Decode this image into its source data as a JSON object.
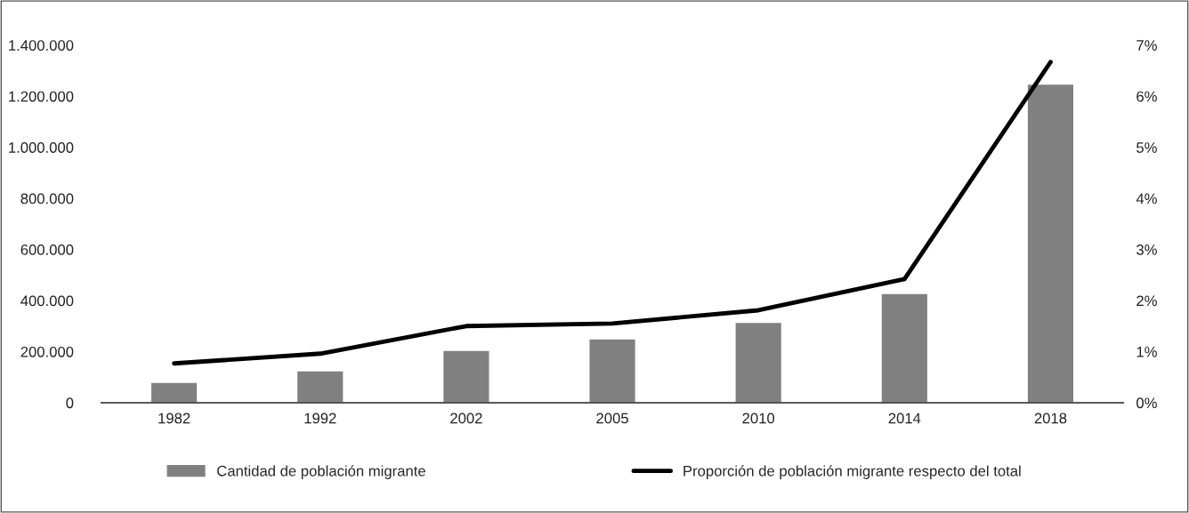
{
  "chart_data": {
    "type": "bar",
    "categories": [
      "1982",
      "1992",
      "2002",
      "2005",
      "2010",
      "2014",
      "2018"
    ],
    "series": [
      {
        "name": "Cantidad de población migrante",
        "color": "#808080",
        "values": [
          80000,
          125000,
          205000,
          250000,
          315000,
          428000,
          1248000
        ]
      },
      {
        "name": "Proporción de población migrante respecto del total",
        "type": "line",
        "axis": "y2",
        "color": "#000000",
        "values": [
          0.77,
          0.96,
          1.5,
          1.55,
          1.81,
          2.42,
          6.67
        ]
      }
    ],
    "ylim": [
      0,
      1400000
    ],
    "yticks": [
      {
        "value": 0,
        "label": "0"
      },
      {
        "value": 200000,
        "label": "200.000"
      },
      {
        "value": 400000,
        "label": "400.000"
      },
      {
        "value": 600000,
        "label": "600.000"
      },
      {
        "value": 800000,
        "label": "800.000"
      },
      {
        "value": 1000000,
        "label": "1.000.000"
      },
      {
        "value": 1200000,
        "label": "1.200.000"
      },
      {
        "value": 1400000,
        "label": "1.400.000"
      }
    ],
    "y2lim": [
      0,
      7
    ],
    "y2ticks": [
      {
        "value": 0,
        "label": "0%"
      },
      {
        "value": 1,
        "label": "1%"
      },
      {
        "value": 2,
        "label": "2%"
      },
      {
        "value": 3,
        "label": "3%"
      },
      {
        "value": 4,
        "label": "4%"
      },
      {
        "value": 5,
        "label": "5%"
      },
      {
        "value": 6,
        "label": "6%"
      },
      {
        "value": 7,
        "label": "7%"
      }
    ],
    "grid": false,
    "legend": "bottom",
    "marker": "none",
    "line_style": "solid"
  }
}
